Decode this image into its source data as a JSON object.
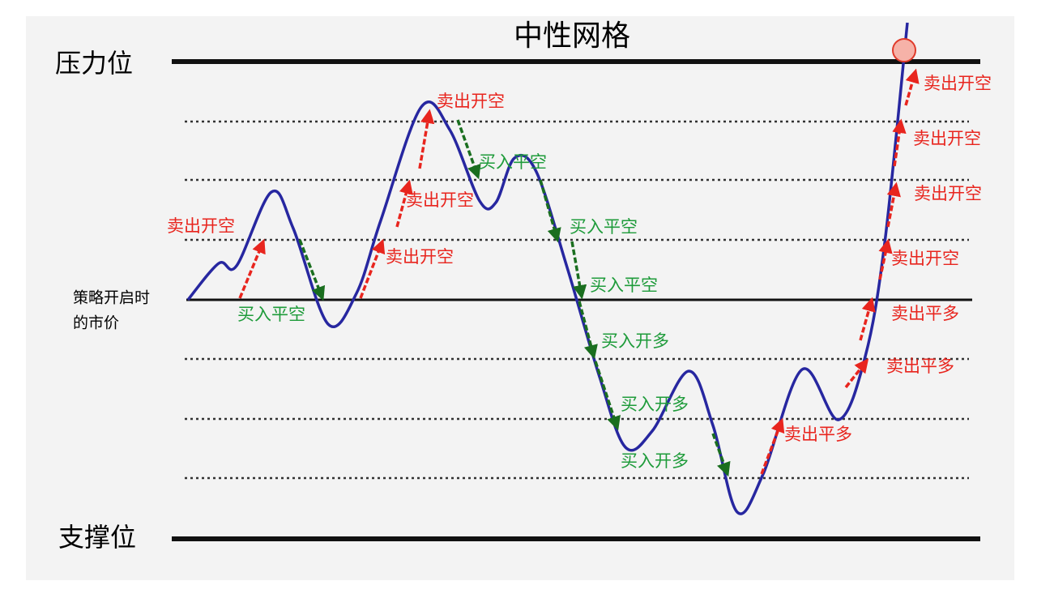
{
  "title": "中性网格",
  "levels": {
    "resistance": "压力位",
    "support": "支撑位",
    "start_price": [
      "策略开启时",
      "的市价"
    ]
  },
  "annotations": [
    {
      "text": "卖出开空",
      "kind": "sell"
    },
    {
      "text": "卖出开空",
      "kind": "sell"
    },
    {
      "text": "卖出开空",
      "kind": "sell"
    },
    {
      "text": "卖出开空",
      "kind": "sell"
    },
    {
      "text": "卖出开空",
      "kind": "sell"
    },
    {
      "text": "卖出开空",
      "kind": "sell"
    },
    {
      "text": "卖出开空",
      "kind": "sell"
    },
    {
      "text": "卖出开空",
      "kind": "sell"
    },
    {
      "text": "卖出平多",
      "kind": "sell"
    },
    {
      "text": "卖出平多",
      "kind": "sell"
    },
    {
      "text": "卖出平多",
      "kind": "sell"
    },
    {
      "text": "买入平空",
      "kind": "buy"
    },
    {
      "text": "买入平空",
      "kind": "buy"
    },
    {
      "text": "买入平空",
      "kind": "buy"
    },
    {
      "text": "买入平空",
      "kind": "buy"
    },
    {
      "text": "买入开多",
      "kind": "buy"
    },
    {
      "text": "买入开多",
      "kind": "buy"
    },
    {
      "text": "买入开多",
      "kind": "buy"
    }
  ]
}
